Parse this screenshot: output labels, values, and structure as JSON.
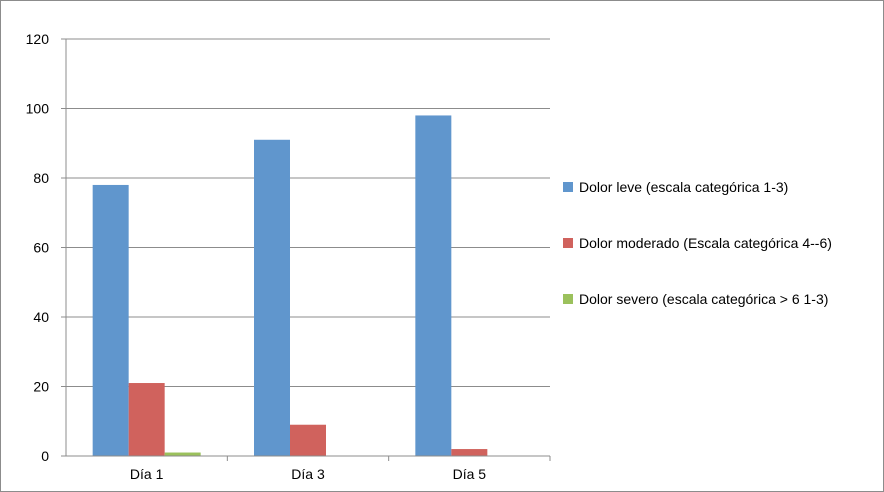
{
  "chart_data": {
    "type": "bar",
    "categories": [
      "Día 1",
      "Día 3",
      "Día 5"
    ],
    "series": [
      {
        "name": "Dolor leve (escala categórica 1-3)",
        "values": [
          78,
          91,
          98
        ],
        "color": "#6096CD"
      },
      {
        "name": "Dolor moderado (Escala categórica 4--6)",
        "values": [
          21,
          9,
          2
        ],
        "color": "#D0625D"
      },
      {
        "name": "Dolor severo (escala categórica > 6 1-3)",
        "values": [
          1,
          0,
          0
        ],
        "color": "#9BC15C"
      }
    ],
    "ylim": [
      0,
      120
    ],
    "yticks": [
      0,
      20,
      40,
      60,
      80,
      100,
      120
    ],
    "grid": true,
    "legend_position": "right",
    "title": "",
    "xlabel": "",
    "ylabel": ""
  }
}
